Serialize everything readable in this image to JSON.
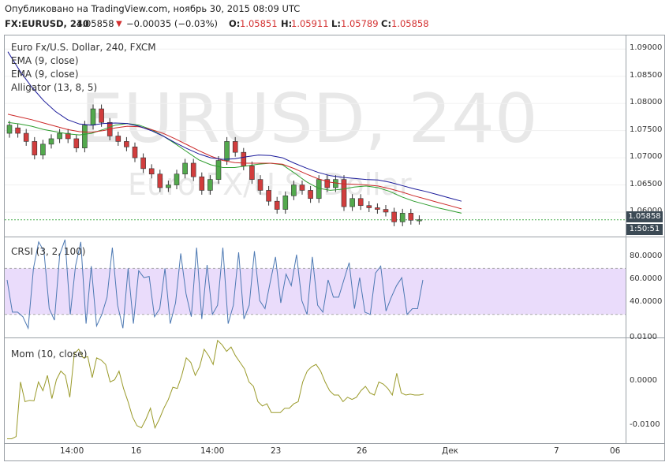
{
  "header": {
    "published": "Опубликовано на TradingView.com, ноябрь 30, 2015 08:09 UTC",
    "symbol": "FX:EURUSD, 240",
    "last": "1.05858",
    "change": "−0.00035 (−0.03%)",
    "o_label": "O:",
    "o": "1.05851",
    "h_label": "H:",
    "h": "1.05911",
    "l_label": "L:",
    "l": "1.05789",
    "c_label": "C:",
    "c": "1.05858"
  },
  "main_pane": {
    "watermark_big": "EURUSD, 240",
    "watermark_small": "Euro FX/U.S. Dollar",
    "legend": [
      "Euro Fx/U.S. Dollar, 240, FXCM",
      "EMA (9, close)",
      "EMA (9, close)",
      "Alligator (13, 8, 5)"
    ],
    "price_ticks": [
      "1.09000",
      "1.08500",
      "1.08000",
      "1.07500",
      "1.07000",
      "1.06500",
      "1.06000"
    ],
    "last_price": "1.05858",
    "countdown": "1:50:51"
  },
  "crsi_pane": {
    "legend": "CRSI (3, 2, 100)",
    "ticks": [
      "80.0000",
      "60.0000",
      "40.0000"
    ]
  },
  "mom_pane": {
    "legend": "Mom (10, close)",
    "ticks": [
      "0.0100",
      "0.0000",
      "-0.0100"
    ]
  },
  "time_axis": [
    "14:00",
    "16",
    "14:00",
    "23",
    "26",
    "Дек",
    "7",
    "06"
  ],
  "colors": {
    "bull": "#53a94d",
    "bear": "#d13d3d",
    "ema_green": "#2e9d2e",
    "ema_red": "#cc2929",
    "alligator_blue": "#1a1a9a",
    "crsi_line": "#4d79b3",
    "crsi_band": "#eadcfb",
    "mom_line": "#9a9a2a",
    "last_price_tag": "#3c4a55",
    "dashed": "#4caf50"
  },
  "chart_data": [
    {
      "type": "line",
      "title": "Euro Fx/U.S. Dollar, 240, FXCM",
      "series": [
        {
          "name": "EMA (9, close)",
          "values": [
            1.0765,
            1.0762,
            1.0758,
            1.0752,
            1.0748,
            1.0744,
            1.0742,
            1.0745,
            1.0752,
            1.076,
            1.0763,
            1.076,
            1.0752,
            1.074,
            1.0726,
            1.0711,
            1.0696,
            1.0687,
            1.0682,
            1.0682,
            1.0685,
            1.0688,
            1.069,
            1.0687,
            1.0672,
            1.0656,
            1.0644,
            1.064,
            1.0642,
            1.0646,
            1.0648,
            1.0645,
            1.0638,
            1.0628,
            1.062,
            1.0614,
            1.0608,
            1.0603,
            1.0598
          ]
        },
        {
          "name": "EMA (9, close)",
          "values": [
            1.078,
            1.0775,
            1.077,
            1.0764,
            1.0758,
            1.0752,
            1.0748,
            1.0747,
            1.075,
            1.0755,
            1.0758,
            1.0757,
            1.0752,
            1.0745,
            1.0735,
            1.0724,
            1.0713,
            1.0703,
            1.0695,
            1.0691,
            1.069,
            1.069,
            1.069,
            1.0688,
            1.068,
            1.067,
            1.0661,
            1.0655,
            1.0652,
            1.0651,
            1.065,
            1.0648,
            1.0643,
            1.0637,
            1.063,
            1.0624,
            1.0618,
            1.0612,
            1.0606
          ]
        },
        {
          "name": "Alligator (13, 8, 5)",
          "values": [
            1.0895,
            1.086,
            1.083,
            1.0805,
            1.0785,
            1.077,
            1.0762,
            1.076,
            1.0763,
            1.0764,
            1.0763,
            1.0758,
            1.075,
            1.074,
            1.0728,
            1.0717,
            1.0707,
            1.07,
            1.0697,
            1.0698,
            1.0702,
            1.0705,
            1.0704,
            1.07,
            1.069,
            1.0681,
            1.0673,
            1.0667,
            1.0664,
            1.0662,
            1.066,
            1.0659,
            1.0655,
            1.0649,
            1.0643,
            1.0638,
            1.0632,
            1.0626,
            1.062
          ]
        }
      ],
      "candles": [
        [
          1.0745,
          1.076
        ],
        [
          1.0755,
          1.0745
        ],
        [
          1.0745,
          1.073
        ],
        [
          1.073,
          1.0705
        ],
        [
          1.0705,
          1.0725
        ],
        [
          1.0725,
          1.0735
        ],
        [
          1.0735,
          1.0745
        ],
        [
          1.0745,
          1.0735
        ],
        [
          1.0735,
          1.0718
        ],
        [
          1.0718,
          1.076
        ],
        [
          1.076,
          1.079
        ],
        [
          1.079,
          1.0765
        ],
        [
          1.0765,
          1.074
        ],
        [
          1.074,
          1.073
        ],
        [
          1.073,
          1.072
        ],
        [
          1.072,
          1.07
        ],
        [
          1.07,
          1.068
        ],
        [
          1.068,
          1.067
        ],
        [
          1.067,
          1.0645
        ],
        [
          1.0645,
          1.065
        ],
        [
          1.065,
          1.067
        ],
        [
          1.067,
          1.069
        ],
        [
          1.069,
          1.0665
        ],
        [
          1.0665,
          1.064
        ],
        [
          1.064,
          1.066
        ],
        [
          1.066,
          1.0695
        ],
        [
          1.0695,
          1.073
        ],
        [
          1.073,
          1.071
        ],
        [
          1.071,
          1.0685
        ],
        [
          1.0685,
          1.066
        ],
        [
          1.066,
          1.064
        ],
        [
          1.064,
          1.062
        ],
        [
          1.062,
          1.0605
        ],
        [
          1.0605,
          1.063
        ],
        [
          1.063,
          1.065
        ],
        [
          1.065,
          1.064
        ],
        [
          1.064,
          1.0625
        ],
        [
          1.0625,
          1.066
        ],
        [
          1.066,
          1.0645
        ],
        [
          1.0645,
          1.066
        ],
        [
          1.066,
          1.061
        ],
        [
          1.061,
          1.0625
        ],
        [
          1.0625,
          1.0612
        ],
        [
          1.0612,
          1.0608
        ],
        [
          1.0608,
          1.0605
        ],
        [
          1.0605,
          1.06
        ],
        [
          1.06,
          1.0582
        ],
        [
          1.0582,
          1.0598
        ],
        [
          1.0598,
          1.0585
        ],
        [
          1.0585,
          1.0586
        ]
      ],
      "ylim": [
        1.0555,
        1.0925
      ]
    },
    {
      "type": "line",
      "title": "CRSI (3, 2, 100)",
      "series": [
        {
          "name": "CRSI (3, 2, 100)",
          "values": [
            60,
            32,
            32,
            28,
            18,
            70,
            93,
            85,
            35,
            25,
            82,
            95,
            30,
            72,
            93,
            22,
            72,
            20,
            30,
            45,
            88,
            38,
            18,
            70,
            22,
            68,
            62,
            63,
            28,
            35,
            70,
            22,
            40,
            83,
            48,
            28,
            88,
            26,
            73,
            30,
            38,
            88,
            22,
            38,
            84,
            26,
            38,
            85,
            42,
            35,
            58,
            80,
            40,
            65,
            55,
            82,
            42,
            30,
            80,
            38,
            32,
            60,
            45,
            45,
            60,
            75,
            35,
            62,
            32,
            30,
            66,
            72,
            33,
            45,
            55,
            62,
            30,
            35,
            35,
            60
          ]
        }
      ],
      "ylim": [
        10,
        97
      ],
      "band": [
        30,
        70
      ]
    },
    {
      "type": "line",
      "title": "Mom (10, close)",
      "series": [
        {
          "name": "Mom (10, close)",
          "values": [
            -0.013,
            -0.013,
            -0.0125,
            0.0,
            -0.0045,
            -0.0042,
            -0.0043,
            0.0,
            -0.002,
            0.0015,
            -0.0038,
            0.0005,
            0.0025,
            0.0015,
            -0.0035,
            0.0065,
            0.0075,
            0.0055,
            0.0058,
            0.001,
            0.0055,
            0.005,
            0.004,
            0.0,
            0.0005,
            0.0025,
            -0.0015,
            -0.0045,
            -0.008,
            -0.01,
            -0.0105,
            -0.0085,
            -0.006,
            -0.0105,
            -0.0085,
            -0.006,
            -0.004,
            -0.0012,
            -0.0015,
            0.0015,
            0.0055,
            0.0045,
            0.0015,
            0.0035,
            0.0075,
            0.006,
            0.004,
            0.0095,
            0.0085,
            0.007,
            0.008,
            0.006,
            0.0045,
            0.003,
            0.0,
            -0.001,
            -0.0045,
            -0.0055,
            -0.005,
            -0.007,
            -0.007,
            -0.007,
            -0.006,
            -0.006,
            -0.005,
            -0.0045,
            0.0,
            0.0025,
            0.0035,
            0.004,
            0.0025,
            0.0,
            -0.002,
            -0.003,
            -0.003,
            -0.0045,
            -0.0035,
            -0.004,
            -0.0035,
            -0.002,
            -0.001,
            -0.0025,
            -0.003,
            0.0,
            -0.0005,
            -0.0015,
            -0.003,
            0.002,
            -0.0025,
            -0.003,
            -0.0028,
            -0.003,
            -0.003,
            -0.0028
          ]
        }
      ],
      "ylim": [
        -0.014,
        0.01
      ]
    }
  ]
}
